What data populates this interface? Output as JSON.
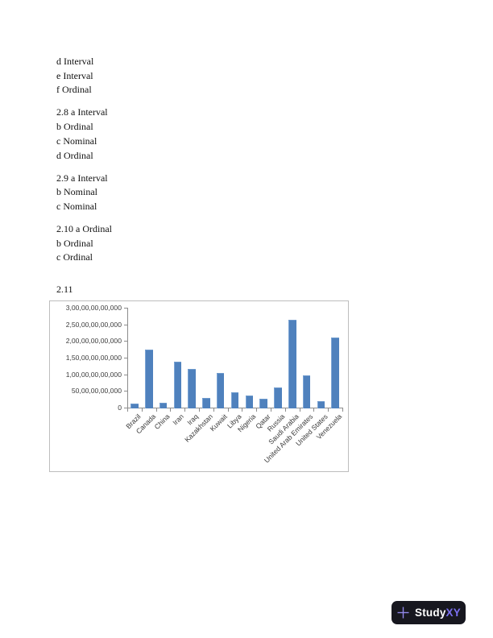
{
  "document": {
    "paragraphs": [
      {
        "lines": [
          "d Interval",
          "e Interval",
          "f Ordinal"
        ]
      },
      {
        "lines": [
          "2.8 a Interval",
          "b Ordinal",
          "c Nominal",
          "d Ordinal"
        ]
      },
      {
        "lines": [
          "2.9 a Interval",
          "b Nominal",
          "c Nominal"
        ]
      },
      {
        "lines": [
          "2.10 a Ordinal",
          "b Ordinal",
          "c Ordinal"
        ]
      },
      {
        "lines": [
          "2.11"
        ]
      }
    ]
  },
  "chart_data": {
    "type": "bar",
    "title": "",
    "xlabel": "",
    "ylabel": "",
    "categories": [
      "Brazil",
      "Canada",
      "China",
      "Iran",
      "Iraq",
      "Kazakhstan",
      "Kuwait",
      "Libya",
      "Nigeria",
      "Qatar",
      "Russia",
      "Saudi Arabia",
      "United Arab Emirates",
      "United States",
      "Venezuela"
    ],
    "values": [
      12860000000,
      175200000000,
      14800000000,
      137600000000,
      115000000000,
      30000000000,
      104000000000,
      47000000000,
      37200000000,
      25410000000,
      60000000000,
      264600000000,
      97800000000,
      19120000000,
      211200000000
    ],
    "ylim": [
      0,
      300000000000
    ],
    "ytick_labels_bottom_up": [
      "0",
      "50,00,00,00,000",
      "1,00,00,00,00,000",
      "1,50,00,00,00,000",
      "2,00,00,00,00,000",
      "2,50,00,00,00,000",
      "3,00,00,00,00,000"
    ],
    "grid": false,
    "legend": "none",
    "bar_color": "#4f81bd"
  },
  "footer": {
    "logo": {
      "plus_icon": "plus-icon",
      "study": "Study",
      "xy": "XY",
      "background": "#17171f",
      "accent": "#7b6ff0",
      "plus_color": "#9187e9"
    }
  }
}
